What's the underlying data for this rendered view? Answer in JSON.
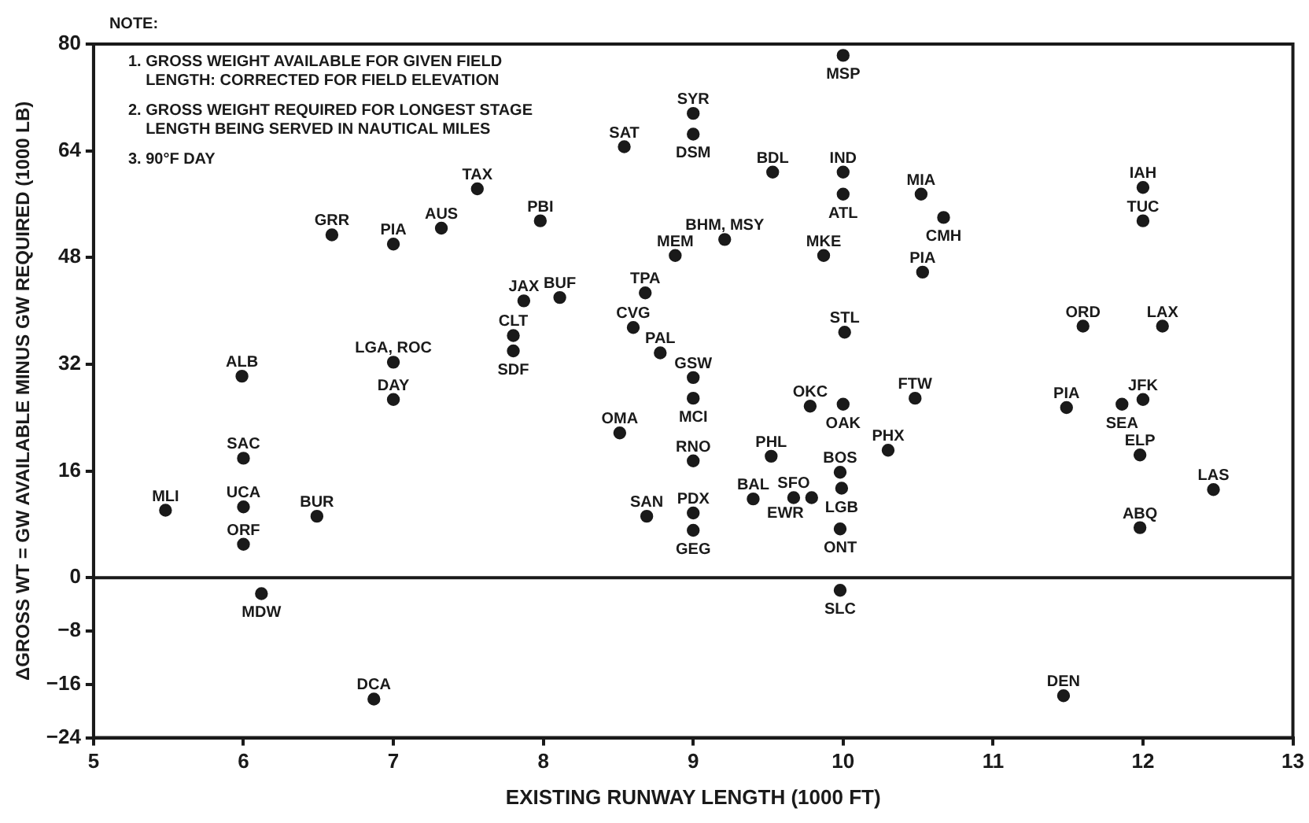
{
  "chart_data": {
    "type": "scatter",
    "xlabel": "EXISTING RUNWAY LENGTH (1000 FT)",
    "ylabel": "ΔGROSS WT = GW AVAILABLE MINUS GW REQUIRED (1000 LB)",
    "xlim": [
      5,
      13
    ],
    "xticks": [
      5,
      6,
      7,
      8,
      9,
      10,
      11,
      12,
      13
    ],
    "ylim": [
      -24,
      80
    ],
    "yticks": [
      -24,
      -16,
      -8,
      0,
      16,
      32,
      48,
      64,
      80
    ],
    "grid": false,
    "legend": false,
    "marker": "circle",
    "ref_lines": [
      {
        "axis": "y",
        "value": 0,
        "color": "#1a1a1a",
        "line_style": "solid"
      }
    ],
    "series": [
      {
        "color": "#1a1a1a",
        "x": [
          10.0,
          9.0,
          9.0,
          8.54,
          9.53,
          10.0,
          10.0,
          10.52,
          12.0,
          12.0,
          10.67,
          9.21,
          8.88,
          9.87,
          10.53,
          8.68,
          8.6,
          10.01,
          11.6,
          12.13,
          8.78,
          9.0,
          9.0,
          9.78,
          10.0,
          10.48,
          11.49,
          11.86,
          12.0,
          8.51,
          9.0,
          9.52,
          10.3,
          9.98,
          11.98,
          12.47,
          9.99,
          9.67,
          9.79,
          9.4,
          9.0,
          8.69,
          9.0,
          9.98,
          11.98,
          9.98,
          11.47,
          6.59,
          7.0,
          7.32,
          7.56,
          7.98,
          7.87,
          8.11,
          7.8,
          7.8,
          7.0,
          5.99,
          7.0,
          6.0,
          6.0,
          5.48,
          6.49,
          6.0,
          6.12,
          6.87
        ],
        "values": [
          78.3,
          69.6,
          66.5,
          64.6,
          60.8,
          60.8,
          57.5,
          57.5,
          58.5,
          53.5,
          54,
          50.7,
          48.3,
          48.3,
          45.8,
          42.7,
          37.5,
          36.8,
          37.7,
          37.7,
          33.7,
          30.0,
          26.9,
          25.7,
          26,
          26.9,
          25.5,
          26,
          26.7,
          21.7,
          17.5,
          18.2,
          19.1,
          15.8,
          18.4,
          13.2,
          13.4,
          12.0,
          12.0,
          11.8,
          9.7,
          9.2,
          7.1,
          7.3,
          7.5,
          -1.9,
          -17.7,
          51.4,
          50,
          52.4,
          58.3,
          53.5,
          41.5,
          42,
          36.3,
          34,
          32.3,
          30.2,
          26.7,
          17.9,
          10.6,
          10.1,
          9.2,
          5.0,
          -2.4,
          -18.2
        ]
      }
    ],
    "annotations": [
      "NOTE:",
      "1. GROSS WEIGHT AVAILABLE FOR GIVEN FIELD\n    LENGTH: CORRECTED FOR FIELD ELEVATION",
      "2. GROSS WEIGHT REQUIRED FOR LONGEST STAGE\n    LENGTH BEING SERVED IN NAUTICAL MILES",
      "3. 90°F DAY",
      {
        "text": "MSP",
        "x": 10.0,
        "y": 78.3
      },
      {
        "text": "SYR",
        "x": 9.0,
        "y": 69.6
      },
      {
        "text": "DSM",
        "x": 9.0,
        "y": 66.5
      },
      {
        "text": "SAT",
        "x": 8.54,
        "y": 64.6
      },
      {
        "text": "BDL",
        "x": 9.53,
        "y": 60.8
      },
      {
        "text": "IND",
        "x": 10.0,
        "y": 60.8
      },
      {
        "text": "ATL",
        "x": 10.0,
        "y": 57.5
      },
      {
        "text": "MIA",
        "x": 10.52,
        "y": 57.5
      },
      {
        "text": "IAH",
        "x": 12.0,
        "y": 58.5
      },
      {
        "text": "TUC",
        "x": 12.0,
        "y": 53.5
      },
      {
        "text": "CMH",
        "x": 10.67,
        "y": 54
      },
      {
        "text": "BHM, MSY",
        "x": 9.21,
        "y": 50.7
      },
      {
        "text": "MEM",
        "x": 8.88,
        "y": 48.3
      },
      {
        "text": "MKE",
        "x": 9.87,
        "y": 48.3
      },
      {
        "text": "PIA",
        "x": 10.53,
        "y": 45.8
      },
      {
        "text": "TPA",
        "x": 8.68,
        "y": 42.7
      },
      {
        "text": "CVG",
        "x": 8.6,
        "y": 37.5
      },
      {
        "text": "STL",
        "x": 10.01,
        "y": 36.8
      },
      {
        "text": "ORD",
        "x": 11.6,
        "y": 37.7
      },
      {
        "text": "LAX",
        "x": 12.13,
        "y": 37.7
      },
      {
        "text": "PAL",
        "x": 8.78,
        "y": 33.7
      },
      {
        "text": "GSW",
        "x": 9.0,
        "y": 30.0
      },
      {
        "text": "MCI",
        "x": 9.0,
        "y": 26.9
      },
      {
        "text": "OKC",
        "x": 9.78,
        "y": 25.7
      },
      {
        "text": "OAK",
        "x": 10.0,
        "y": 26
      },
      {
        "text": "FTW",
        "x": 10.48,
        "y": 26.9
      },
      {
        "text": "PIA",
        "x": 11.49,
        "y": 25.5
      },
      {
        "text": "SEA",
        "x": 11.86,
        "y": 26
      },
      {
        "text": "JFK",
        "x": 12.0,
        "y": 26.7
      },
      {
        "text": "OMA",
        "x": 8.51,
        "y": 21.7
      },
      {
        "text": "RNO",
        "x": 9.0,
        "y": 17.5
      },
      {
        "text": "PHL",
        "x": 9.52,
        "y": 18.2
      },
      {
        "text": "PHX",
        "x": 10.3,
        "y": 19.1
      },
      {
        "text": "BOS",
        "x": 9.98,
        "y": 15.8
      },
      {
        "text": "ELP",
        "x": 11.98,
        "y": 18.4
      },
      {
        "text": "LAS",
        "x": 12.47,
        "y": 13.2
      },
      {
        "text": "LGB",
        "x": 9.99,
        "y": 13.4
      },
      {
        "text": "SFO",
        "x": 9.67,
        "y": 12.0
      },
      {
        "text": "EWR",
        "x": 9.79,
        "y": 12.0
      },
      {
        "text": "BAL",
        "x": 9.4,
        "y": 11.8
      },
      {
        "text": "PDX",
        "x": 9.0,
        "y": 9.7
      },
      {
        "text": "SAN",
        "x": 8.69,
        "y": 9.2
      },
      {
        "text": "GEG",
        "x": 9.0,
        "y": 7.1
      },
      {
        "text": "ONT",
        "x": 9.98,
        "y": 7.3
      },
      {
        "text": "ABQ",
        "x": 11.98,
        "y": 7.5
      },
      {
        "text": "SLC",
        "x": 9.98,
        "y": -1.9
      },
      {
        "text": "DEN",
        "x": 11.47,
        "y": -17.7
      },
      {
        "text": "GRR",
        "x": 6.59,
        "y": 51.4
      },
      {
        "text": "PIA",
        "x": 7.0,
        "y": 50
      },
      {
        "text": "AUS",
        "x": 7.32,
        "y": 52.4
      },
      {
        "text": "TAX",
        "x": 7.56,
        "y": 58.3
      },
      {
        "text": "PBI",
        "x": 7.98,
        "y": 53.5
      },
      {
        "text": "JAX",
        "x": 7.87,
        "y": 41.5
      },
      {
        "text": "BUF",
        "x": 8.11,
        "y": 42
      },
      {
        "text": "CLT",
        "x": 7.8,
        "y": 36.3
      },
      {
        "text": "SDF",
        "x": 7.8,
        "y": 34
      },
      {
        "text": "LGA, ROC",
        "x": 7.0,
        "y": 32.3
      },
      {
        "text": "ALB",
        "x": 5.99,
        "y": 30.2
      },
      {
        "text": "DAY",
        "x": 7.0,
        "y": 26.7
      },
      {
        "text": "SAC",
        "x": 6.0,
        "y": 17.9
      },
      {
        "text": "UCA",
        "x": 6.0,
        "y": 10.6
      },
      {
        "text": "MLI",
        "x": 5.48,
        "y": 10.1
      },
      {
        "text": "BUR",
        "x": 6.49,
        "y": 9.2
      },
      {
        "text": "ORF",
        "x": 6.0,
        "y": 5.0
      },
      {
        "text": "MDW",
        "x": 6.12,
        "y": -2.4
      },
      {
        "text": "DCA",
        "x": 6.87,
        "y": -18.2
      }
    ]
  }
}
